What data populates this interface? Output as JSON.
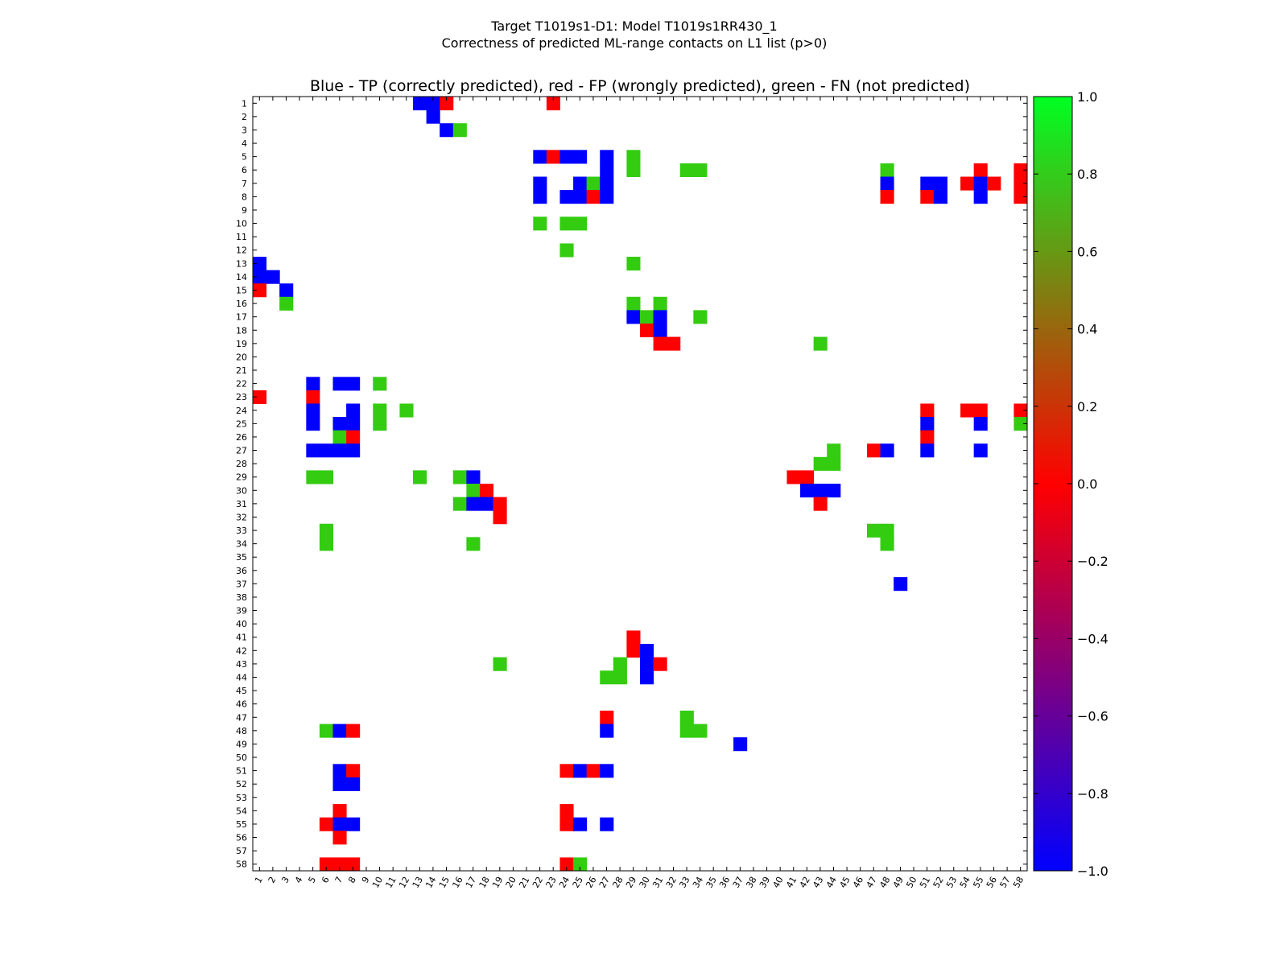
{
  "chart_data": {
    "type": "heatmap",
    "suptitle_line1": "Target T1019s1-D1: Model T1019s1RR430_1",
    "suptitle_line2": "Correctness of predicted ML-range contacts on L1 list (p>0)",
    "title": "Blue - TP (correctly predicted), red - FP (wrongly predicted), green - FN (not predicted)",
    "xlabel": "",
    "ylabel": "",
    "n_residues": 58,
    "x_tick_labels": [
      "1",
      "2",
      "3",
      "4",
      "5",
      "6",
      "7",
      "8",
      "9",
      "10",
      "11",
      "12",
      "13",
      "14",
      "15",
      "16",
      "17",
      "18",
      "19",
      "20",
      "21",
      "22",
      "23",
      "24",
      "25",
      "26",
      "27",
      "28",
      "29",
      "30",
      "31",
      "32",
      "33",
      "34",
      "35",
      "36",
      "37",
      "38",
      "39",
      "40",
      "41",
      "42",
      "43",
      "44",
      "45",
      "46",
      "47",
      "48",
      "49",
      "50",
      "51",
      "52",
      "53",
      "54",
      "55",
      "56",
      "57",
      "58"
    ],
    "x_tick_label_map": [
      "1",
      "2",
      "3",
      "4",
      "5",
      "6",
      "7",
      "8",
      "9",
      "10",
      "11",
      "12",
      "13",
      "14",
      "15",
      "16",
      "17",
      "18",
      "19",
      "20",
      "21",
      "22",
      "23",
      "24",
      "25",
      "26",
      "27",
      "28",
      "29",
      "30",
      "31",
      "32",
      "33",
      "34",
      "35",
      "36",
      "37",
      "38",
      "39",
      "40",
      "41",
      "42",
      "43",
      "44",
      "45",
      "46",
      "47",
      "48",
      "49",
      "50",
      "51",
      "52",
      "53",
      "54",
      "55",
      "56",
      "57",
      "58"
    ],
    "y_tick_labels": [
      "1",
      "2",
      "3",
      "4",
      "5",
      "6",
      "7",
      "8",
      "9",
      "10",
      "11",
      "12",
      "13",
      "14",
      "15",
      "16",
      "17",
      "18",
      "19",
      "20",
      "21",
      "22",
      "23",
      "24",
      "25",
      "26",
      "27",
      "28",
      "29",
      "30",
      "31",
      "32",
      "33",
      "34",
      "35",
      "36",
      "37",
      "38",
      "39",
      "40",
      "41",
      "42",
      "43",
      "44",
      "45",
      "46",
      "47",
      "48",
      "49",
      "50",
      "51",
      "52",
      "53",
      "54",
      "55",
      "56",
      "57",
      "58"
    ],
    "colorbar": {
      "min": -1.0,
      "max": 1.0,
      "ticks": [
        "1.0",
        "0.8",
        "0.6",
        "0.4",
        "0.2",
        "0.0",
        "−0.2",
        "−0.4",
        "−0.6",
        "−0.8",
        "−1.0"
      ],
      "tick_values": [
        1.0,
        0.8,
        0.6,
        0.4,
        0.2,
        0.0,
        -0.2,
        -0.4,
        -0.6,
        -0.8,
        -1.0
      ]
    },
    "legend": {
      "tp_value": -1.0,
      "fp_value": 0.0,
      "fn_value": 0.8
    },
    "colors": {
      "tp": "#0000ff",
      "fp": "#ff0000",
      "fn": "#33cc11"
    },
    "cells": [
      {
        "row": 1,
        "col": 13,
        "value": -1.0
      },
      {
        "row": 1,
        "col": 14,
        "value": -1.0
      },
      {
        "row": 1,
        "col": 15,
        "value": 0.0
      },
      {
        "row": 1,
        "col": 23,
        "value": 0.0
      },
      {
        "row": 2,
        "col": 14,
        "value": -1.0
      },
      {
        "row": 3,
        "col": 15,
        "value": -1.0
      },
      {
        "row": 3,
        "col": 16,
        "value": 0.8
      },
      {
        "row": 5,
        "col": 22,
        "value": -1.0
      },
      {
        "row": 5,
        "col": 23,
        "value": 0.0
      },
      {
        "row": 5,
        "col": 24,
        "value": -1.0
      },
      {
        "row": 5,
        "col": 25,
        "value": -1.0
      },
      {
        "row": 5,
        "col": 27,
        "value": -1.0
      },
      {
        "row": 5,
        "col": 29,
        "value": 0.8
      },
      {
        "row": 6,
        "col": 27,
        "value": -1.0
      },
      {
        "row": 6,
        "col": 29,
        "value": 0.8
      },
      {
        "row": 6,
        "col": 33,
        "value": 0.8
      },
      {
        "row": 6,
        "col": 34,
        "value": 0.8
      },
      {
        "row": 6,
        "col": 48,
        "value": 0.8
      },
      {
        "row": 6,
        "col": 55,
        "value": 0.0
      },
      {
        "row": 6,
        "col": 58,
        "value": 0.0
      },
      {
        "row": 7,
        "col": 22,
        "value": -1.0
      },
      {
        "row": 7,
        "col": 25,
        "value": -1.0
      },
      {
        "row": 7,
        "col": 26,
        "value": 0.8
      },
      {
        "row": 7,
        "col": 27,
        "value": -1.0
      },
      {
        "row": 7,
        "col": 48,
        "value": -1.0
      },
      {
        "row": 7,
        "col": 51,
        "value": -1.0
      },
      {
        "row": 7,
        "col": 52,
        "value": -1.0
      },
      {
        "row": 7,
        "col": 54,
        "value": 0.0
      },
      {
        "row": 7,
        "col": 55,
        "value": -1.0
      },
      {
        "row": 7,
        "col": 56,
        "value": 0.0
      },
      {
        "row": 7,
        "col": 58,
        "value": 0.0
      },
      {
        "row": 8,
        "col": 22,
        "value": -1.0
      },
      {
        "row": 8,
        "col": 24,
        "value": -1.0
      },
      {
        "row": 8,
        "col": 25,
        "value": -1.0
      },
      {
        "row": 8,
        "col": 26,
        "value": 0.0
      },
      {
        "row": 8,
        "col": 27,
        "value": -1.0
      },
      {
        "row": 8,
        "col": 48,
        "value": 0.0
      },
      {
        "row": 8,
        "col": 51,
        "value": 0.0
      },
      {
        "row": 8,
        "col": 52,
        "value": -1.0
      },
      {
        "row": 8,
        "col": 55,
        "value": -1.0
      },
      {
        "row": 8,
        "col": 58,
        "value": 0.0
      },
      {
        "row": 10,
        "col": 22,
        "value": 0.8
      },
      {
        "row": 10,
        "col": 24,
        "value": 0.8
      },
      {
        "row": 10,
        "col": 25,
        "value": 0.8
      },
      {
        "row": 12,
        "col": 24,
        "value": 0.8
      },
      {
        "row": 13,
        "col": 1,
        "value": -1.0
      },
      {
        "row": 13,
        "col": 29,
        "value": 0.8
      },
      {
        "row": 14,
        "col": 1,
        "value": -1.0
      },
      {
        "row": 14,
        "col": 2,
        "value": -1.0
      },
      {
        "row": 15,
        "col": 1,
        "value": 0.0
      },
      {
        "row": 15,
        "col": 3,
        "value": -1.0
      },
      {
        "row": 16,
        "col": 3,
        "value": 0.8
      },
      {
        "row": 16,
        "col": 29,
        "value": 0.8
      },
      {
        "row": 16,
        "col": 31,
        "value": 0.8
      },
      {
        "row": 17,
        "col": 29,
        "value": -1.0
      },
      {
        "row": 17,
        "col": 30,
        "value": 0.8
      },
      {
        "row": 17,
        "col": 31,
        "value": -1.0
      },
      {
        "row": 17,
        "col": 34,
        "value": 0.8
      },
      {
        "row": 18,
        "col": 30,
        "value": 0.0
      },
      {
        "row": 18,
        "col": 31,
        "value": -1.0
      },
      {
        "row": 19,
        "col": 31,
        "value": 0.0
      },
      {
        "row": 19,
        "col": 32,
        "value": 0.0
      },
      {
        "row": 19,
        "col": 43,
        "value": 0.8
      },
      {
        "row": 22,
        "col": 5,
        "value": -1.0
      },
      {
        "row": 22,
        "col": 7,
        "value": -1.0
      },
      {
        "row": 22,
        "col": 8,
        "value": -1.0
      },
      {
        "row": 22,
        "col": 10,
        "value": 0.8
      },
      {
        "row": 23,
        "col": 1,
        "value": 0.0
      },
      {
        "row": 23,
        "col": 5,
        "value": 0.0
      },
      {
        "row": 24,
        "col": 5,
        "value": -1.0
      },
      {
        "row": 24,
        "col": 8,
        "value": -1.0
      },
      {
        "row": 24,
        "col": 10,
        "value": 0.8
      },
      {
        "row": 24,
        "col": 12,
        "value": 0.8
      },
      {
        "row": 24,
        "col": 51,
        "value": 0.0
      },
      {
        "row": 24,
        "col": 54,
        "value": 0.0
      },
      {
        "row": 24,
        "col": 55,
        "value": 0.0
      },
      {
        "row": 24,
        "col": 58,
        "value": 0.0
      },
      {
        "row": 25,
        "col": 5,
        "value": -1.0
      },
      {
        "row": 25,
        "col": 7,
        "value": -1.0
      },
      {
        "row": 25,
        "col": 8,
        "value": -1.0
      },
      {
        "row": 25,
        "col": 10,
        "value": 0.8
      },
      {
        "row": 25,
        "col": 51,
        "value": -1.0
      },
      {
        "row": 25,
        "col": 55,
        "value": -1.0
      },
      {
        "row": 25,
        "col": 58,
        "value": 0.8
      },
      {
        "row": 26,
        "col": 7,
        "value": 0.8
      },
      {
        "row": 26,
        "col": 8,
        "value": 0.0
      },
      {
        "row": 26,
        "col": 51,
        "value": 0.0
      },
      {
        "row": 27,
        "col": 5,
        "value": -1.0
      },
      {
        "row": 27,
        "col": 6,
        "value": -1.0
      },
      {
        "row": 27,
        "col": 7,
        "value": -1.0
      },
      {
        "row": 27,
        "col": 8,
        "value": -1.0
      },
      {
        "row": 27,
        "col": 44,
        "value": 0.8
      },
      {
        "row": 27,
        "col": 47,
        "value": 0.0
      },
      {
        "row": 27,
        "col": 48,
        "value": -1.0
      },
      {
        "row": 27,
        "col": 51,
        "value": -1.0
      },
      {
        "row": 27,
        "col": 55,
        "value": -1.0
      },
      {
        "row": 28,
        "col": 43,
        "value": 0.8
      },
      {
        "row": 28,
        "col": 44,
        "value": 0.8
      },
      {
        "row": 29,
        "col": 5,
        "value": 0.8
      },
      {
        "row": 29,
        "col": 6,
        "value": 0.8
      },
      {
        "row": 29,
        "col": 13,
        "value": 0.8
      },
      {
        "row": 29,
        "col": 16,
        "value": 0.8
      },
      {
        "row": 29,
        "col": 17,
        "value": -1.0
      },
      {
        "row": 29,
        "col": 41,
        "value": 0.0
      },
      {
        "row": 29,
        "col": 42,
        "value": 0.0
      },
      {
        "row": 30,
        "col": 17,
        "value": 0.8
      },
      {
        "row": 30,
        "col": 18,
        "value": 0.0
      },
      {
        "row": 30,
        "col": 42,
        "value": -1.0
      },
      {
        "row": 30,
        "col": 43,
        "value": -1.0
      },
      {
        "row": 30,
        "col": 44,
        "value": -1.0
      },
      {
        "row": 31,
        "col": 16,
        "value": 0.8
      },
      {
        "row": 31,
        "col": 17,
        "value": -1.0
      },
      {
        "row": 31,
        "col": 18,
        "value": -1.0
      },
      {
        "row": 31,
        "col": 19,
        "value": 0.0
      },
      {
        "row": 31,
        "col": 43,
        "value": 0.0
      },
      {
        "row": 32,
        "col": 19,
        "value": 0.0
      },
      {
        "row": 33,
        "col": 6,
        "value": 0.8
      },
      {
        "row": 33,
        "col": 47,
        "value": 0.8
      },
      {
        "row": 33,
        "col": 48,
        "value": 0.8
      },
      {
        "row": 34,
        "col": 6,
        "value": 0.8
      },
      {
        "row": 34,
        "col": 17,
        "value": 0.8
      },
      {
        "row": 34,
        "col": 48,
        "value": 0.8
      },
      {
        "row": 37,
        "col": 49,
        "value": -1.0
      },
      {
        "row": 41,
        "col": 29,
        "value": 0.0
      },
      {
        "row": 42,
        "col": 29,
        "value": 0.0
      },
      {
        "row": 42,
        "col": 30,
        "value": -1.0
      },
      {
        "row": 43,
        "col": 19,
        "value": 0.8
      },
      {
        "row": 43,
        "col": 28,
        "value": 0.8
      },
      {
        "row": 43,
        "col": 30,
        "value": -1.0
      },
      {
        "row": 43,
        "col": 31,
        "value": 0.0
      },
      {
        "row": 44,
        "col": 27,
        "value": 0.8
      },
      {
        "row": 44,
        "col": 28,
        "value": 0.8
      },
      {
        "row": 44,
        "col": 30,
        "value": -1.0
      },
      {
        "row": 47,
        "col": 27,
        "value": 0.0
      },
      {
        "row": 47,
        "col": 33,
        "value": 0.8
      },
      {
        "row": 48,
        "col": 6,
        "value": 0.8
      },
      {
        "row": 48,
        "col": 7,
        "value": -1.0
      },
      {
        "row": 48,
        "col": 8,
        "value": 0.0
      },
      {
        "row": 48,
        "col": 27,
        "value": -1.0
      },
      {
        "row": 48,
        "col": 33,
        "value": 0.8
      },
      {
        "row": 48,
        "col": 34,
        "value": 0.8
      },
      {
        "row": 49,
        "col": 37,
        "value": -1.0
      },
      {
        "row": 51,
        "col": 7,
        "value": -1.0
      },
      {
        "row": 51,
        "col": 8,
        "value": 0.0
      },
      {
        "row": 51,
        "col": 24,
        "value": 0.0
      },
      {
        "row": 51,
        "col": 25,
        "value": -1.0
      },
      {
        "row": 51,
        "col": 26,
        "value": 0.0
      },
      {
        "row": 51,
        "col": 27,
        "value": -1.0
      },
      {
        "row": 52,
        "col": 7,
        "value": -1.0
      },
      {
        "row": 52,
        "col": 8,
        "value": -1.0
      },
      {
        "row": 54,
        "col": 7,
        "value": 0.0
      },
      {
        "row": 54,
        "col": 24,
        "value": 0.0
      },
      {
        "row": 55,
        "col": 6,
        "value": 0.0
      },
      {
        "row": 55,
        "col": 7,
        "value": -1.0
      },
      {
        "row": 55,
        "col": 8,
        "value": -1.0
      },
      {
        "row": 55,
        "col": 24,
        "value": 0.0
      },
      {
        "row": 55,
        "col": 25,
        "value": -1.0
      },
      {
        "row": 55,
        "col": 27,
        "value": -1.0
      },
      {
        "row": 56,
        "col": 7,
        "value": 0.0
      },
      {
        "row": 58,
        "col": 6,
        "value": 0.0
      },
      {
        "row": 58,
        "col": 7,
        "value": 0.0
      },
      {
        "row": 58,
        "col": 8,
        "value": 0.0
      },
      {
        "row": 58,
        "col": 24,
        "value": 0.0
      },
      {
        "row": 58,
        "col": 25,
        "value": 0.8
      }
    ]
  }
}
